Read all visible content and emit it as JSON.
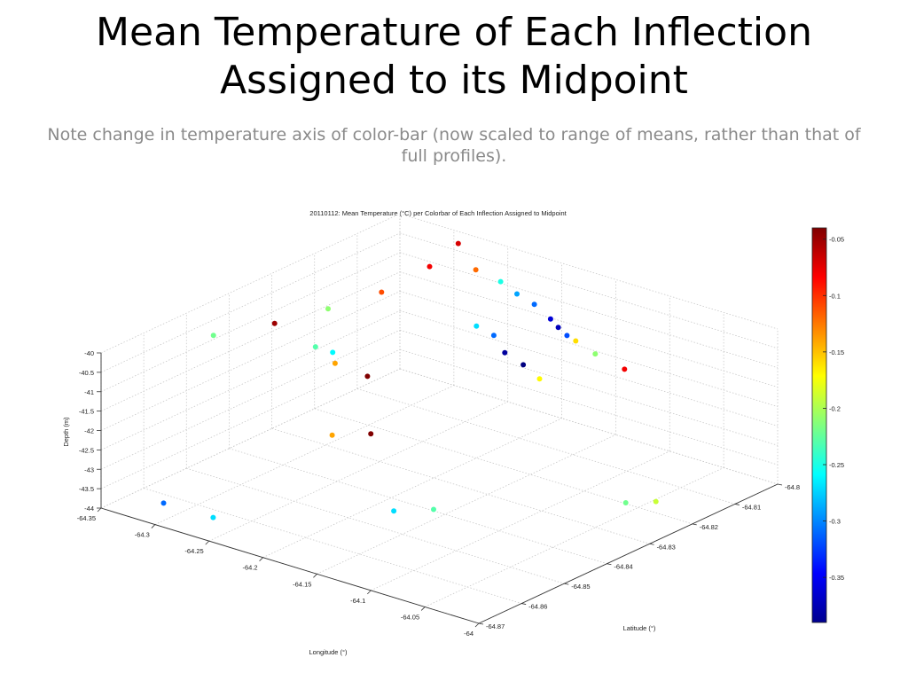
{
  "slide": {
    "title_line1": "Mean Temperature of Each Inflection",
    "title_line2": "Assigned to its Midpoint",
    "subtitle": "Note change in temperature axis of color-bar (now scaled to range of means, rather than that of full profiles)."
  },
  "chart_data": {
    "type": "scatter",
    "title": "20110112:  Mean Temperature (°C) per Colorbar of Each Inflection Assigned to Midpoint",
    "xlabel": "Longitude (°)",
    "ylabel": "Latitude (°)",
    "zlabel": "Depth (m)",
    "xlim": [
      -64.35,
      -64.0
    ],
    "ylim": [
      -64.87,
      -64.8
    ],
    "zlim": [
      -44,
      -40
    ],
    "x_ticks": [
      "-64.35",
      "-64.3",
      "-64.25",
      "-64.2",
      "-64.15",
      "-64.1",
      "-64.05",
      "-64"
    ],
    "y_ticks": [
      "-64.8",
      "-64.81",
      "-64.82",
      "-64.83",
      "-64.84",
      "-64.85",
      "-64.86",
      "-64.87"
    ],
    "z_ticks": [
      "-40",
      "-40.5",
      "-41",
      "-41.5",
      "-42",
      "-42.5",
      "-43",
      "-43.5",
      "-44"
    ],
    "grid": true,
    "colorbar": {
      "ticks": [
        "-0.05",
        "-0.1",
        "-0.15",
        "-0.2",
        "-0.25",
        "-0.3",
        "-0.35"
      ],
      "range": [
        -0.39,
        -0.04
      ],
      "colormap": "jet"
    },
    "points": [
      {
        "x": -64.288,
        "y": -64.802,
        "z": -40.14,
        "t": -0.07
      },
      {
        "x": -64.248,
        "y": -64.808,
        "z": -40.17,
        "t": -0.12
      },
      {
        "x": -64.225,
        "y": -64.808,
        "z": -40.28,
        "t": -0.25
      },
      {
        "x": -64.202,
        "y": -64.81,
        "z": -40.3,
        "t": -0.29
      },
      {
        "x": -64.178,
        "y": -64.812,
        "z": -40.26,
        "t": -0.31
      },
      {
        "x": -64.155,
        "y": -64.814,
        "z": -40.34,
        "t": -0.36
      },
      {
        "x": -64.14,
        "y": -64.816,
        "z": -40.33,
        "t": -0.37
      },
      {
        "x": -64.124,
        "y": -64.818,
        "z": -40.3,
        "t": -0.32
      },
      {
        "x": -64.108,
        "y": -64.82,
        "z": -40.2,
        "t": -0.16
      },
      {
        "x": -64.082,
        "y": -64.822,
        "z": -40.21,
        "t": -0.21
      },
      {
        "x": -64.043,
        "y": -64.825,
        "z": -40.12,
        "t": -0.08
      },
      {
        "x": -64.2,
        "y": -64.82,
        "z": -40.6,
        "t": -0.27
      },
      {
        "x": -64.176,
        "y": -64.822,
        "z": -40.53,
        "t": -0.31
      },
      {
        "x": -64.15,
        "y": -64.826,
        "z": -40.55,
        "t": -0.38
      },
      {
        "x": -64.125,
        "y": -64.828,
        "z": -40.55,
        "t": -0.39
      },
      {
        "x": -64.098,
        "y": -64.831,
        "z": -40.53,
        "t": -0.17
      },
      {
        "x": -64.275,
        "y": -64.812,
        "z": -40.11,
        "t": -0.08
      },
      {
        "x": -64.28,
        "y": -64.822,
        "z": -40.3,
        "t": -0.11
      },
      {
        "x": -64.29,
        "y": -64.832,
        "z": -40.3,
        "t": -0.21
      },
      {
        "x": -64.3,
        "y": -64.842,
        "z": -40.25,
        "t": -0.05
      },
      {
        "x": -64.325,
        "y": -64.85,
        "z": -40.36,
        "t": -0.22
      },
      {
        "x": -64.27,
        "y": -64.84,
        "z": -40.7,
        "t": -0.23
      },
      {
        "x": -64.262,
        "y": -64.838,
        "z": -40.88,
        "t": -0.26
      },
      {
        "x": -64.24,
        "y": -64.843,
        "z": -40.72,
        "t": -0.14
      },
      {
        "x": -64.21,
        "y": -64.843,
        "z": -40.8,
        "t": -0.04
      },
      {
        "x": -64.195,
        "y": -64.846,
        "z": -42.0,
        "t": -0.04
      },
      {
        "x": -64.215,
        "y": -64.85,
        "z": -42.0,
        "t": -0.14
      },
      {
        "x": -64.15,
        "y": -64.852,
        "z": -43.3,
        "t": -0.27
      },
      {
        "x": -64.125,
        "y": -64.849,
        "z": -43.2,
        "t": -0.23
      },
      {
        "x": -64.03,
        "y": -64.828,
        "z": -43.3,
        "t": -0.22
      },
      {
        "x": -64.01,
        "y": -64.826,
        "z": -43.2,
        "t": -0.19
      },
      {
        "x": -64.262,
        "y": -64.866,
        "z": -43.7,
        "t": -0.27
      },
      {
        "x": -64.3,
        "y": -64.868,
        "z": -43.55,
        "t": -0.31
      }
    ]
  }
}
